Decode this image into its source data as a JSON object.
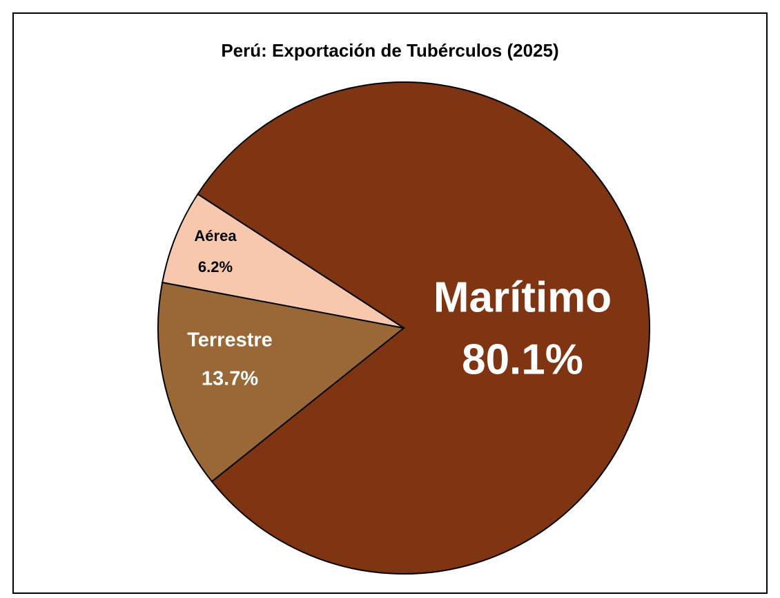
{
  "chart_data": {
    "type": "pie",
    "title": "Perú: Exportación de Tubérculos (2025)",
    "categories": [
      "Marítimo",
      "Terrestre",
      "Aérea"
    ],
    "values": [
      80.1,
      13.7,
      6.2
    ],
    "value_labels": [
      "80.1%",
      "13.7%",
      "6.2%"
    ],
    "colors": [
      "#7f3511",
      "#9a6736",
      "#f7c8ae"
    ]
  }
}
